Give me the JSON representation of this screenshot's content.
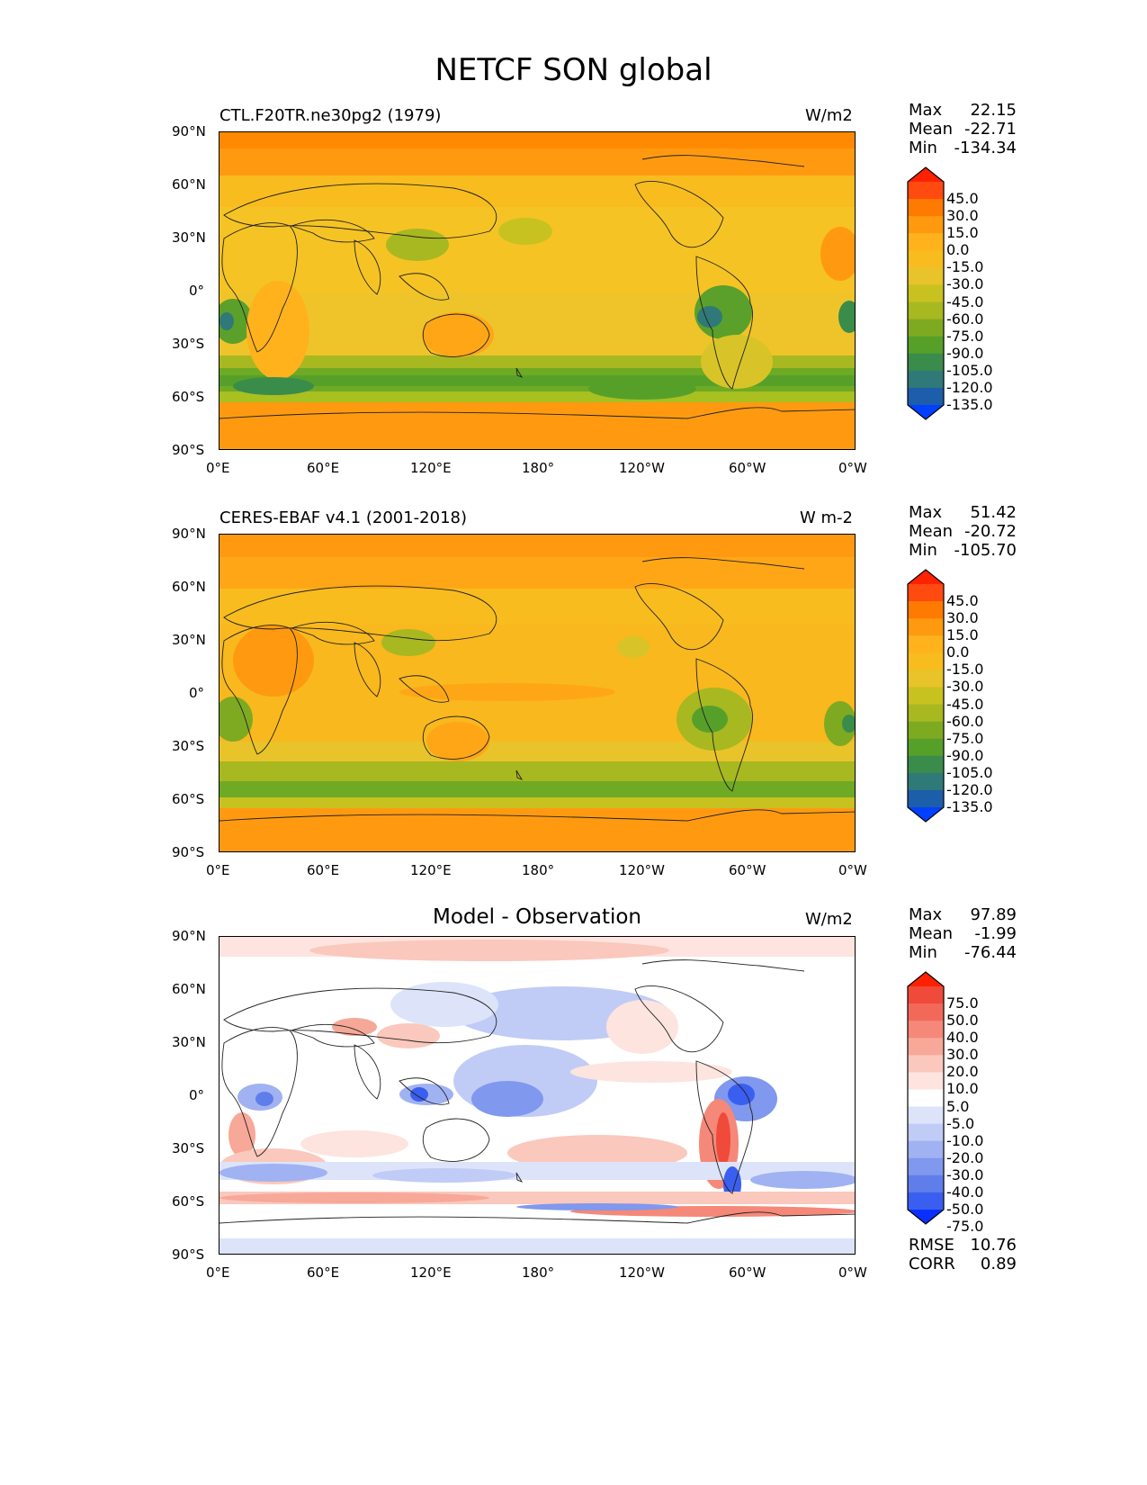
{
  "suptitle": "NETCF SON global",
  "lat_ticks": [
    "90°N",
    "60°N",
    "30°N",
    "0°",
    "30°S",
    "60°S",
    "90°S"
  ],
  "lon_ticks": [
    "0°E",
    "60°E",
    "120°E",
    "180°",
    "120°W",
    "60°W",
    "0°W"
  ],
  "panels": [
    {
      "left_title": "CTL.F20TR.ne30pg2 (1979)",
      "center_title": "",
      "units": "W/m2",
      "stats": {
        "max_label": "Max",
        "max": "22.15",
        "mean_label": "Mean",
        "mean": "-22.71",
        "min_label": "Min",
        "min": "-134.34"
      },
      "colorbar": {
        "levels": [
          "45.0",
          "30.0",
          "15.0",
          "0.0",
          "-15.0",
          "-30.0",
          "-45.0",
          "-60.0",
          "-75.0",
          "-90.0",
          "-105.0",
          "-120.0",
          "-135.0"
        ],
        "colors": [
          "#ff2200",
          "#ff4a10",
          "#ff7a00",
          "#ff9a10",
          "#ffb21c",
          "#f8bc1e",
          "#e8c32a",
          "#c8c220",
          "#a8b820",
          "#7eaa22",
          "#56a02a",
          "#3a8c4a",
          "#2f7a78",
          "#1c5eaa",
          "#0040ff"
        ]
      }
    },
    {
      "left_title": "CERES-EBAF v4.1 (2001-2018)",
      "center_title": "",
      "units": "W m-2",
      "stats": {
        "max_label": "Max",
        "max": "51.42",
        "mean_label": "Mean",
        "mean": "-20.72",
        "min_label": "Min",
        "min": "-105.70"
      },
      "colorbar": {
        "levels": [
          "45.0",
          "30.0",
          "15.0",
          "0.0",
          "-15.0",
          "-30.0",
          "-45.0",
          "-60.0",
          "-75.0",
          "-90.0",
          "-105.0",
          "-120.0",
          "-135.0"
        ],
        "colors": [
          "#ff2200",
          "#ff4a10",
          "#ff7a00",
          "#ff9a10",
          "#ffb21c",
          "#f8bc1e",
          "#e8c32a",
          "#c8c220",
          "#a8b820",
          "#7eaa22",
          "#56a02a",
          "#3a8c4a",
          "#2f7a78",
          "#1c5eaa",
          "#0040ff"
        ]
      }
    },
    {
      "left_title": "",
      "center_title": "Model - Observation",
      "units": "W/m2",
      "stats": {
        "max_label": "Max",
        "max": "97.89",
        "mean_label": "Mean",
        "mean": "-1.99",
        "min_label": "Min",
        "min": "-76.44"
      },
      "extra_stats": {
        "rmse_label": "RMSE",
        "rmse": "10.76",
        "corr_label": "CORR",
        "corr": "0.89"
      },
      "colorbar": {
        "levels": [
          "75.0",
          "50.0",
          "40.0",
          "30.0",
          "20.0",
          "10.0",
          "5.0",
          "-5.0",
          "-10.0",
          "-20.0",
          "-30.0",
          "-40.0",
          "-50.0",
          "-75.0"
        ],
        "colors": [
          "#ff2000",
          "#ef4a3a",
          "#f2695a",
          "#f58878",
          "#f8a898",
          "#fac8bc",
          "#fde4de",
          "#ffffff",
          "#dde4fa",
          "#c0ccf6",
          "#a0b2f2",
          "#8098ee",
          "#5f7eea",
          "#3a5ff0",
          "#0a30ff"
        ]
      }
    }
  ]
}
